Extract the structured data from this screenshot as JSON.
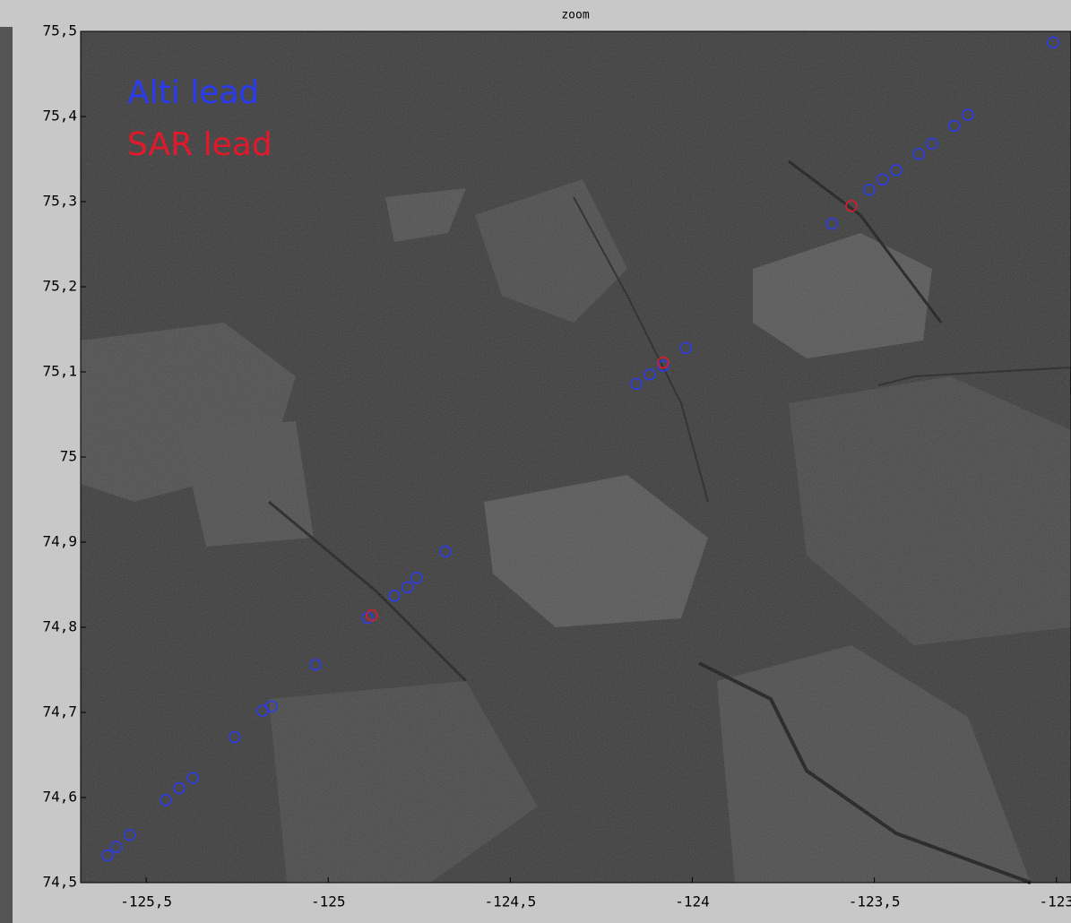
{
  "chart_data": {
    "type": "scatter",
    "title": "zoom",
    "xlim": [
      -125.68,
      -122.96
    ],
    "ylim": [
      74.5,
      75.5
    ],
    "xticks": [
      {
        "value": -125.5,
        "label": "-125,5"
      },
      -125,
      {
        "value": -124.5,
        "label": "-124,5"
      },
      -124,
      {
        "value": -123.5,
        "label": "-123,5"
      },
      -123
    ],
    "yticks": [
      {
        "value": 74.5,
        "label": "74,5"
      },
      {
        "value": 74.6,
        "label": "74,6"
      },
      {
        "value": 74.7,
        "label": "74,7"
      },
      {
        "value": 74.8,
        "label": "74,8"
      },
      {
        "value": 74.9,
        "label": "74,9"
      },
      75,
      {
        "value": 75.1,
        "label": "75,1"
      },
      {
        "value": 75.2,
        "label": "75,2"
      },
      {
        "value": 75.3,
        "label": "75,3"
      },
      {
        "value": 75.4,
        "label": "75,4"
      },
      {
        "value": 75.5,
        "label": "75,5"
      }
    ],
    "legend": "upper left",
    "series": [
      {
        "name": "Alti lead",
        "color": "#2b3cf0",
        "x": [
          -125.606,
          -125.582,
          -125.545,
          -125.446,
          -125.409,
          -125.372,
          -125.257,
          -125.18,
          -125.156,
          -125.035,
          -124.892,
          -124.818,
          -124.782,
          -124.757,
          -124.678,
          -124.154,
          -124.117,
          -124.08,
          -124.018,
          -123.617,
          -123.514,
          -123.477,
          -123.44,
          -123.378,
          -123.342,
          -123.28,
          -123.243,
          -123.009
        ],
        "values": [
          74.532,
          74.542,
          74.556,
          74.597,
          74.611,
          74.623,
          74.671,
          74.702,
          74.707,
          74.756,
          74.811,
          74.837,
          74.847,
          74.858,
          74.889,
          75.086,
          75.097,
          75.107,
          75.128,
          75.274,
          75.314,
          75.326,
          75.337,
          75.356,
          75.368,
          75.389,
          75.402,
          75.487
        ]
      },
      {
        "name": "SAR lead",
        "color": "#e3182b",
        "x": [
          -124.88,
          -124.08,
          -123.563
        ],
        "values": [
          74.814,
          75.111,
          75.295
        ]
      }
    ]
  }
}
